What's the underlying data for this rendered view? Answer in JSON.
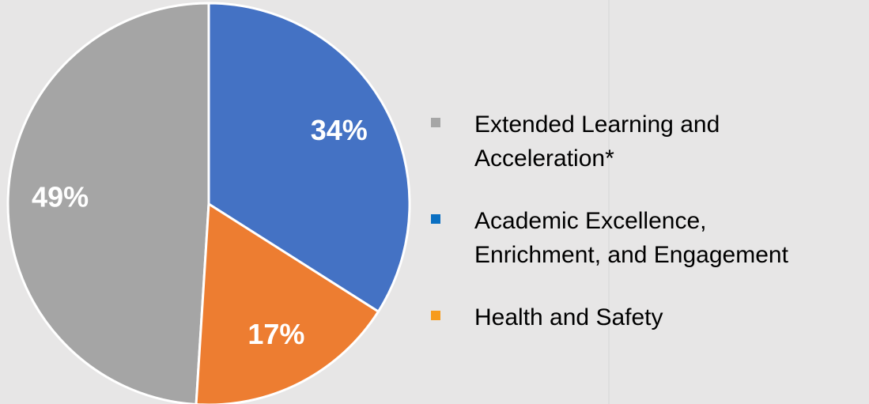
{
  "chart_data": {
    "type": "pie",
    "categories": [
      [
        "Extended Learning and",
        "Acceleration*"
      ],
      [
        "Academic Excellence,",
        "Enrichment, and Engagement"
      ],
      [
        "Health and Safety"
      ]
    ],
    "values": [
      49,
      34,
      17
    ],
    "value_labels": [
      "49%",
      "34%",
      "17%"
    ],
    "colors": [
      "#a5a5a5",
      "#4472c4",
      "#ed7d31"
    ],
    "legend_colors": [
      "#a6a6a6",
      "#0a6fc2",
      "#f79b1c"
    ],
    "legend": "right"
  }
}
